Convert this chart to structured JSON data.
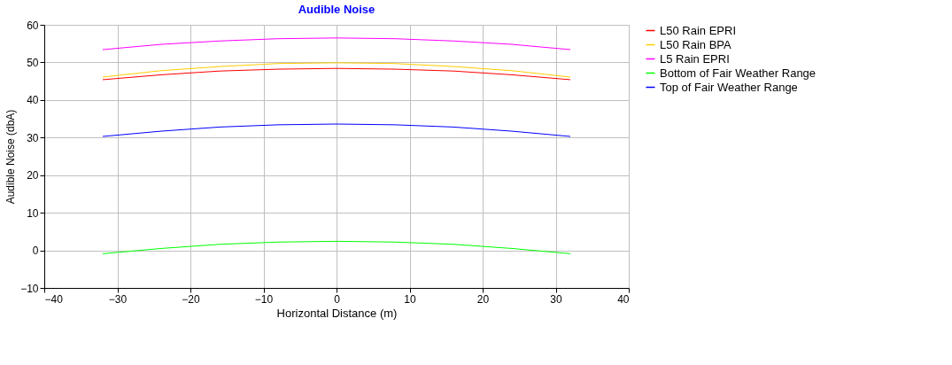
{
  "chart_data": {
    "type": "line",
    "title": "Audible Noise",
    "xlabel": "Horizontal Distance (m)",
    "ylabel": "Audible Noise (dbA)",
    "x": [
      -32,
      -24,
      -16,
      -8,
      0,
      8,
      16,
      24,
      32
    ],
    "series": [
      {
        "name": "L50 Rain EPRI",
        "color": "#ff0000",
        "values": [
          45.4,
          46.7,
          47.7,
          48.2,
          48.4,
          48.2,
          47.7,
          46.7,
          45.4
        ]
      },
      {
        "name": "L50 Rain BPA",
        "color": "#ffcc00",
        "values": [
          46.1,
          47.8,
          48.9,
          49.7,
          49.9,
          49.7,
          48.9,
          47.8,
          46.1
        ]
      },
      {
        "name": "L5 Rain EPRI",
        "color": "#ff00ff",
        "values": [
          53.4,
          54.8,
          55.7,
          56.3,
          56.5,
          56.3,
          55.7,
          54.8,
          53.4
        ]
      },
      {
        "name": "Bottom of Fair Weather Range",
        "color": "#00ff00",
        "values": [
          -0.9,
          0.5,
          1.6,
          2.2,
          2.4,
          2.2,
          1.6,
          0.5,
          -0.9
        ]
      },
      {
        "name": "Top of Fair Weather Range",
        "color": "#0000ff",
        "values": [
          30.3,
          31.7,
          32.8,
          33.4,
          33.6,
          33.4,
          32.8,
          31.7,
          30.3
        ]
      }
    ],
    "xlim": [
      -40,
      40
    ],
    "xticks": [
      -40,
      -30,
      -20,
      -10,
      0,
      10,
      20,
      30,
      40
    ],
    "ylim": [
      -10,
      60
    ],
    "yticks": [
      -10,
      0,
      10,
      20,
      30,
      40,
      50,
      60
    ],
    "grid": true,
    "legend": "right",
    "marker": "none",
    "line_style": "solid"
  }
}
